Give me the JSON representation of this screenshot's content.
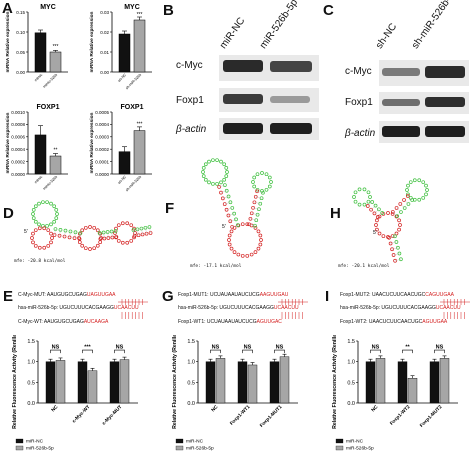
{
  "panels": {
    "A": "A",
    "B": "B",
    "C": "C",
    "D": "D",
    "E": "E",
    "F": "F",
    "G": "G",
    "H": "H",
    "I": "I"
  },
  "panelA": {
    "ylabel": "mRNA Relative expression",
    "charts": [
      {
        "title": "MYC",
        "ticks": [
          "0.15",
          "0.10",
          "0.05",
          "0.00"
        ],
        "sig": "***",
        "xlabels": [
          "mimic",
          "mimic-526b"
        ]
      },
      {
        "title": "MYC",
        "ticks": [
          "0.03",
          "0.02",
          "0.01",
          "0.00"
        ],
        "sig": "***",
        "xlabels": [
          "sh-NC",
          "sh-miR-526b"
        ]
      },
      {
        "title": "FOXP1",
        "ticks": [
          "0.0010",
          "0.0008",
          "0.0006",
          "0.0004",
          "0.0002",
          "0.0000"
        ],
        "sig": "**",
        "xlabels": [
          "mimic",
          "mimic-526b"
        ]
      },
      {
        "title": "FOXP1",
        "ticks": [
          "0.0005",
          "0.0004",
          "0.0003",
          "0.0002",
          "0.0001",
          "0.0000"
        ],
        "sig": "***",
        "xlabels": [
          "sh-NC",
          "sh-miR-526b"
        ]
      }
    ]
  },
  "panelB": {
    "cols": [
      "miR-NC",
      "miR-526b-5p"
    ],
    "rows": [
      "c-Myc",
      "Foxp1",
      "β-actin"
    ]
  },
  "panelC": {
    "cols": [
      "sh-NC",
      "sh-miR-526b-5p"
    ],
    "rows": [
      "c-Myc",
      "Foxp1",
      "β-actin"
    ]
  },
  "structures": {
    "D": "mfe: -20.8 kcal/mol",
    "F": "mfe: -17.1 kcal/mol",
    "H": "mfe: -20.1 kcal/mol"
  },
  "panelE": {
    "seqs": [
      {
        "label": "C-Myc-MUT:",
        "plain": "AAUGUGCUGAG",
        "hl": "UAGUUGAA"
      },
      {
        "label": "hsa-miR-526b-5p:",
        "plain": "UGUCUUUCACGAAGG",
        "hl": "UCAACUU"
      },
      {
        "label": "C-Myc-WT:",
        "plain": "AAUGUGCUGAG",
        "hl": "AUCAAGA"
      }
    ],
    "ylabel": "Relative Fluorescence Activity (Renilla/Firefly)",
    "ticks": [
      "1.5",
      "1.0",
      "0.5",
      "0.0"
    ],
    "categories": [
      "NC",
      "c-Myc-WT",
      "c-Myc-MUT"
    ],
    "sig": [
      "NS",
      "***",
      "NS"
    ],
    "legend": [
      "miR-NC",
      "miR-526b-5p"
    ]
  },
  "panelG": {
    "seqs": [
      {
        "label": "Foxp1-MUT1:",
        "plain": "UCUAUAAUAUCUCG",
        "hl": "AAGUUGAU"
      },
      {
        "label": "hsa-miR-526b-5p:",
        "plain": "UGUCUUUCACGAAGG",
        "hl": "UCAACUU"
      },
      {
        "label": "Foxp1-WT1:",
        "plain": "UCUAUAAUAUCUCG",
        "hl": "AGUUGAC"
      }
    ],
    "ylabel": "Relative Fluorescence Activity (Renilla/Firefly)",
    "ticks": [
      "1.5",
      "1.0",
      "0.5",
      "0.0"
    ],
    "categories": [
      "NC",
      "Foxp1-WT1",
      "Foxp1-MUT1"
    ],
    "sig": [
      "NS",
      "NS",
      "NS"
    ],
    "legend": [
      "miR-NC",
      "miR-526b-5p"
    ]
  },
  "panelI": {
    "seqs": [
      {
        "label": "Foxp1-MUT2:",
        "plain": "UAACUCUUCAACUGC",
        "hl": "CAGUUGAA"
      },
      {
        "label": "hsa-miR-526b-5p:",
        "plain": "UGUCUUUCACGAAGG",
        "hl": "UCAACUU"
      },
      {
        "label": "Foxp1-WT2:",
        "plain": "UAACUCUUCAACUGC",
        "hl": "AGUUGAA"
      }
    ],
    "ylabel": "Relative Fluorescence Activity (Renilla/Firefly)",
    "ticks": [
      "1.5",
      "1.0",
      "0.5",
      "0.0"
    ],
    "categories": [
      "NC",
      "Foxp1-WT2",
      "Foxp1-MUT2"
    ],
    "sig": [
      "NS",
      "**",
      "NS"
    ],
    "legend": [
      "miR-NC",
      "miR-526b-5p"
    ]
  },
  "colors": {
    "black_bar": "#111111",
    "grey_bar": "#a6a6a6",
    "red": "#d42020",
    "green": "#3cbf3c"
  },
  "chart_data": [
    {
      "type": "bar",
      "title": "MYC",
      "ylabel": "mRNA Relative expression",
      "categories": [
        "mimic",
        "mimic-526b"
      ],
      "values": [
        0.098,
        0.05
      ],
      "ylim": [
        0,
        0.15
      ]
    },
    {
      "type": "bar",
      "title": "MYC",
      "ylabel": "mRNA Relative expression",
      "categories": [
        "sh-NC",
        "sh-miR-526b"
      ],
      "values": [
        0.019,
        0.026
      ],
      "ylim": [
        0,
        0.03
      ]
    },
    {
      "type": "bar",
      "title": "FOXP1",
      "ylabel": "mRNA Relative expression",
      "categories": [
        "mimic",
        "mimic-526b"
      ],
      "values": [
        0.00063,
        0.00029
      ],
      "ylim": [
        0,
        0.001
      ]
    },
    {
      "type": "bar",
      "title": "FOXP1",
      "ylabel": "mRNA Relative expression",
      "categories": [
        "sh-NC",
        "sh-miR-526b"
      ],
      "values": [
        0.00018,
        0.00035
      ],
      "ylim": [
        0,
        0.0005
      ]
    },
    {
      "type": "bar",
      "ylabel": "Relative Fluorescence Activity (Renilla/Firefly)",
      "categories": [
        "NC",
        "c-Myc-WT",
        "c-Myc-MUT"
      ],
      "series": [
        {
          "name": "miR-NC",
          "values": [
            1.0,
            1.0,
            1.0
          ]
        },
        {
          "name": "miR-526b-5p",
          "values": [
            1.03,
            0.78,
            1.05
          ]
        }
      ],
      "ylim": [
        0,
        1.5
      ]
    },
    {
      "type": "bar",
      "ylabel": "Relative Fluorescence Activity (Renilla/Firefly)",
      "categories": [
        "NC",
        "Foxp1-WT1",
        "Foxp1-MUT1"
      ],
      "series": [
        {
          "name": "miR-NC",
          "values": [
            1.0,
            1.0,
            1.0
          ]
        },
        {
          "name": "miR-526b-5p",
          "values": [
            1.08,
            0.92,
            1.12
          ]
        }
      ],
      "ylim": [
        0,
        1.5
      ]
    },
    {
      "type": "bar",
      "ylabel": "Relative Fluorescence Activity (Renilla/Firefly)",
      "categories": [
        "NC",
        "Foxp1-WT2",
        "Foxp1-MUT2"
      ],
      "series": [
        {
          "name": "miR-NC",
          "values": [
            1.0,
            1.0,
            1.0
          ]
        },
        {
          "name": "miR-526b-5p",
          "values": [
            1.08,
            0.6,
            1.08
          ]
        }
      ],
      "ylim": [
        0,
        1.5
      ]
    }
  ]
}
